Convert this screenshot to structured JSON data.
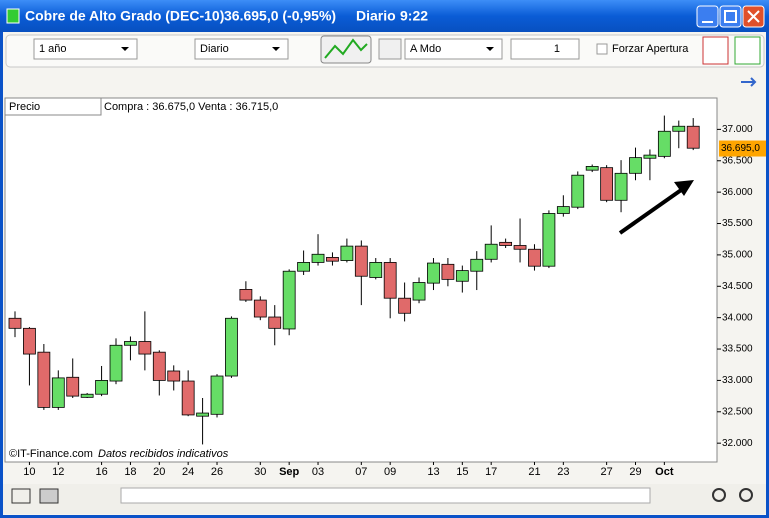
{
  "window": {
    "title": "Cobre de Alto Grado (DEC-10)",
    "quote": "36.695,0 (-0,95%)",
    "period": "Diario",
    "time": "9:22"
  },
  "toolbar": {
    "range": "1 año",
    "interval": "Diario",
    "mode": "A Mdo",
    "count": "1",
    "force_open": "Forzar Apertura"
  },
  "chart_header": {
    "label": "Precio",
    "bid_ask": "Compra : 36.675,0 Venta : 36.715,0"
  },
  "footer": {
    "source": "©IT-Finance.com",
    "note": "Datos recibidos indicativos"
  },
  "chart_data": {
    "type": "candlestick",
    "categories": [
      null,
      "10",
      null,
      "12",
      null,
      null,
      "16",
      null,
      "18",
      null,
      "20",
      null,
      "24",
      null,
      "26",
      null,
      null,
      "30",
      null,
      "Sep",
      null,
      "03",
      null,
      null,
      "07",
      null,
      "09",
      null,
      null,
      "13",
      null,
      "15",
      null,
      "17",
      null,
      null,
      "21",
      null,
      "23",
      null,
      null,
      "27",
      null,
      "29",
      null,
      "Oct",
      null,
      null
    ],
    "open": [
      33.99,
      33.83,
      33.45,
      32.57,
      33.05,
      32.73,
      32.78,
      32.99,
      33.56,
      33.62,
      33.45,
      33.15,
      32.99,
      32.43,
      32.46,
      33.07,
      34.45,
      34.28,
      34.01,
      33.82,
      34.74,
      34.88,
      34.96,
      34.91,
      35.14,
      34.64,
      34.88,
      34.31,
      34.28,
      34.55,
      34.85,
      34.58,
      34.74,
      34.93,
      35.2,
      35.15,
      35.09,
      34.82,
      35.66,
      35.76,
      36.35,
      36.39,
      35.87,
      36.3,
      36.54,
      36.57,
      36.97,
      37.05
    ],
    "high": [
      34.1,
      33.85,
      33.58,
      33.16,
      33.35,
      32.8,
      33.23,
      33.67,
      33.7,
      34.1,
      33.48,
      33.24,
      33.16,
      32.72,
      33.1,
      34.02,
      34.58,
      34.34,
      34.2,
      34.77,
      35.07,
      35.33,
      35.04,
      35.26,
      35.23,
      34.95,
      34.95,
      34.56,
      34.64,
      34.95,
      34.95,
      34.83,
      35.06,
      35.47,
      35.26,
      35.58,
      35.17,
      35.71,
      35.95,
      36.33,
      36.44,
      36.43,
      36.51,
      36.71,
      36.68,
      37.22,
      37.14,
      37.18
    ],
    "low": [
      33.69,
      32.92,
      32.53,
      32.53,
      32.72,
      32.72,
      32.75,
      32.94,
      33.32,
      33.16,
      32.76,
      32.84,
      32.43,
      31.98,
      32.41,
      33.04,
      34.25,
      33.96,
      33.56,
      33.72,
      34.68,
      34.83,
      34.83,
      34.88,
      34.2,
      34.61,
      33.99,
      33.94,
      34.23,
      34.44,
      34.5,
      34.4,
      34.44,
      34.88,
      35.11,
      34.88,
      34.75,
      34.79,
      35.61,
      35.73,
      36.32,
      35.84,
      35.68,
      36.19,
      36.19,
      36.54,
      36.7,
      36.67
    ],
    "close": [
      33.83,
      33.42,
      32.57,
      33.04,
      32.75,
      32.78,
      33.0,
      33.56,
      33.62,
      33.42,
      33.0,
      32.99,
      32.45,
      32.48,
      33.07,
      33.99,
      34.28,
      34.01,
      33.83,
      34.74,
      34.88,
      35.01,
      34.9,
      35.14,
      34.66,
      34.88,
      34.31,
      34.07,
      34.56,
      34.87,
      34.61,
      34.75,
      34.93,
      35.17,
      35.15,
      35.09,
      34.82,
      35.66,
      35.77,
      36.27,
      36.41,
      35.87,
      36.3,
      36.55,
      36.59,
      36.97,
      37.05,
      36.7
    ],
    "up_color": "#66dd66",
    "down_color": "#e06a6a",
    "ylim": [
      31.7,
      37.5
    ],
    "yticks": [
      {
        "value": 32,
        "label": "32.000"
      },
      {
        "value": 32.5,
        "label": "32.500"
      },
      {
        "value": 33,
        "label": "33.000"
      },
      {
        "value": 33.5,
        "label": "33.500"
      },
      {
        "value": 34,
        "label": "34.000"
      },
      {
        "value": 34.5,
        "label": "34.500"
      },
      {
        "value": 35,
        "label": "35.000"
      },
      {
        "value": 35.5,
        "label": "35.500"
      },
      {
        "value": 36,
        "label": "36.000"
      },
      {
        "value": 36.5,
        "label": "36.500"
      },
      {
        "value": 37,
        "label": "37.000"
      }
    ],
    "last_price": {
      "value": 36.695,
      "label": "36.695,0"
    },
    "last_price_color": "#ffa500"
  }
}
